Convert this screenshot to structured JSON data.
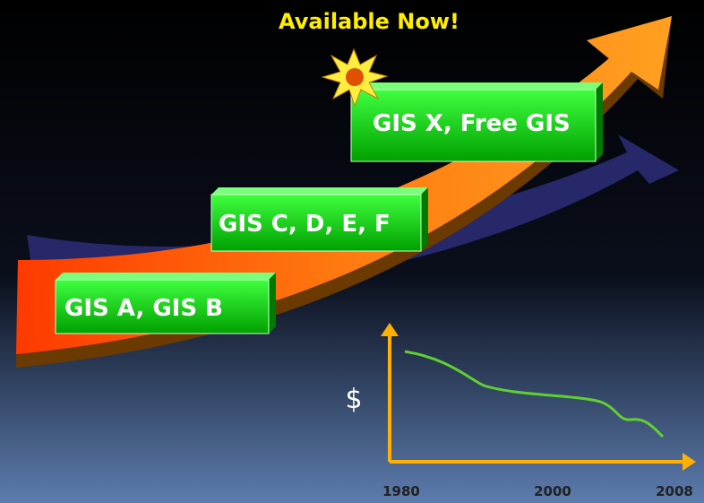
{
  "callout": "Available Now!",
  "boxes": [
    "GIS A, GIS B",
    "GIS C, D, E, F",
    "GIS X, Free GIS"
  ],
  "mini_chart": {
    "y_label": "$",
    "x_labels": [
      "1980",
      "2000",
      "2008"
    ]
  }
}
